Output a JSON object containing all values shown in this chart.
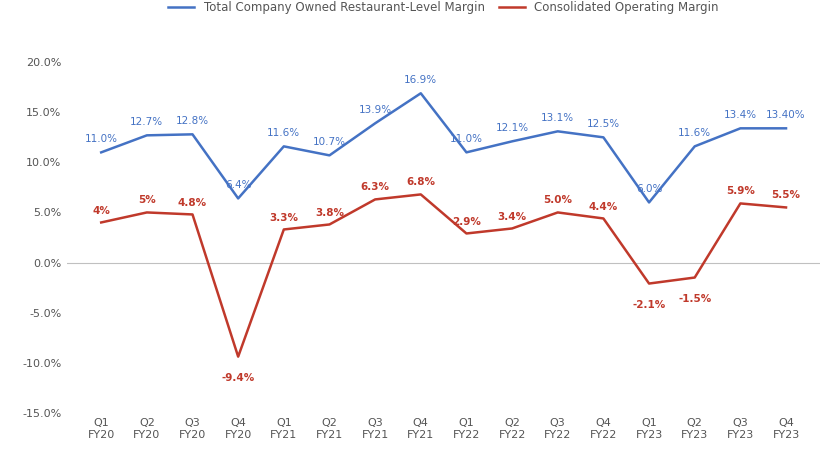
{
  "categories": [
    "Q1\nFY20",
    "Q2\nFY20",
    "Q3\nFY20",
    "Q4\nFY20",
    "Q1\nFY21",
    "Q2\nFY21",
    "Q3\nFY21",
    "Q4\nFY21",
    "Q1\nFY22",
    "Q2\nFY22",
    "Q3\nFY22",
    "Q4\nFY22",
    "Q1\nFY23",
    "Q2\nFY23",
    "Q3\nFY23",
    "Q4\nFY23"
  ],
  "blue_values": [
    11.0,
    12.7,
    12.8,
    6.4,
    11.6,
    10.7,
    13.9,
    16.9,
    11.0,
    12.1,
    13.1,
    12.5,
    6.0,
    11.6,
    13.4,
    13.4
  ],
  "red_values": [
    4.0,
    5.0,
    4.8,
    -9.4,
    3.3,
    3.8,
    6.3,
    6.8,
    2.9,
    3.4,
    5.0,
    4.4,
    -2.1,
    -1.5,
    5.9,
    5.5
  ],
  "blue_labels": [
    "11.0%",
    "12.7%",
    "12.8%",
    "6.4%",
    "11.6%",
    "10.7%",
    "13.9%",
    "16.9%",
    "11.0%",
    "12.1%",
    "13.1%",
    "12.5%",
    "6.0%",
    "11.6%",
    "13.4%",
    "13.40%"
  ],
  "red_labels": [
    "4%",
    "5%",
    "4.8%",
    "-9.4%",
    "3.3%",
    "3.8%",
    "6.3%",
    "6.8%",
    "2.9%",
    "3.4%",
    "5.0%",
    "4.4%",
    "-2.1%",
    "-1.5%",
    "5.9%",
    "5.5%"
  ],
  "blue_color": "#4472C4",
  "red_color": "#C0392B",
  "legend_blue": "Total Company Owned Restaurant-Level Margin",
  "legend_red": "Consolidated Operating Margin",
  "ylim": [
    -15.0,
    22.0
  ],
  "yticks": [
    -15.0,
    -10.0,
    -5.0,
    0.0,
    5.0,
    10.0,
    15.0,
    20.0
  ],
  "background_color": "#ffffff",
  "grid_color": "#c0c0c0",
  "label_color": "#555555"
}
